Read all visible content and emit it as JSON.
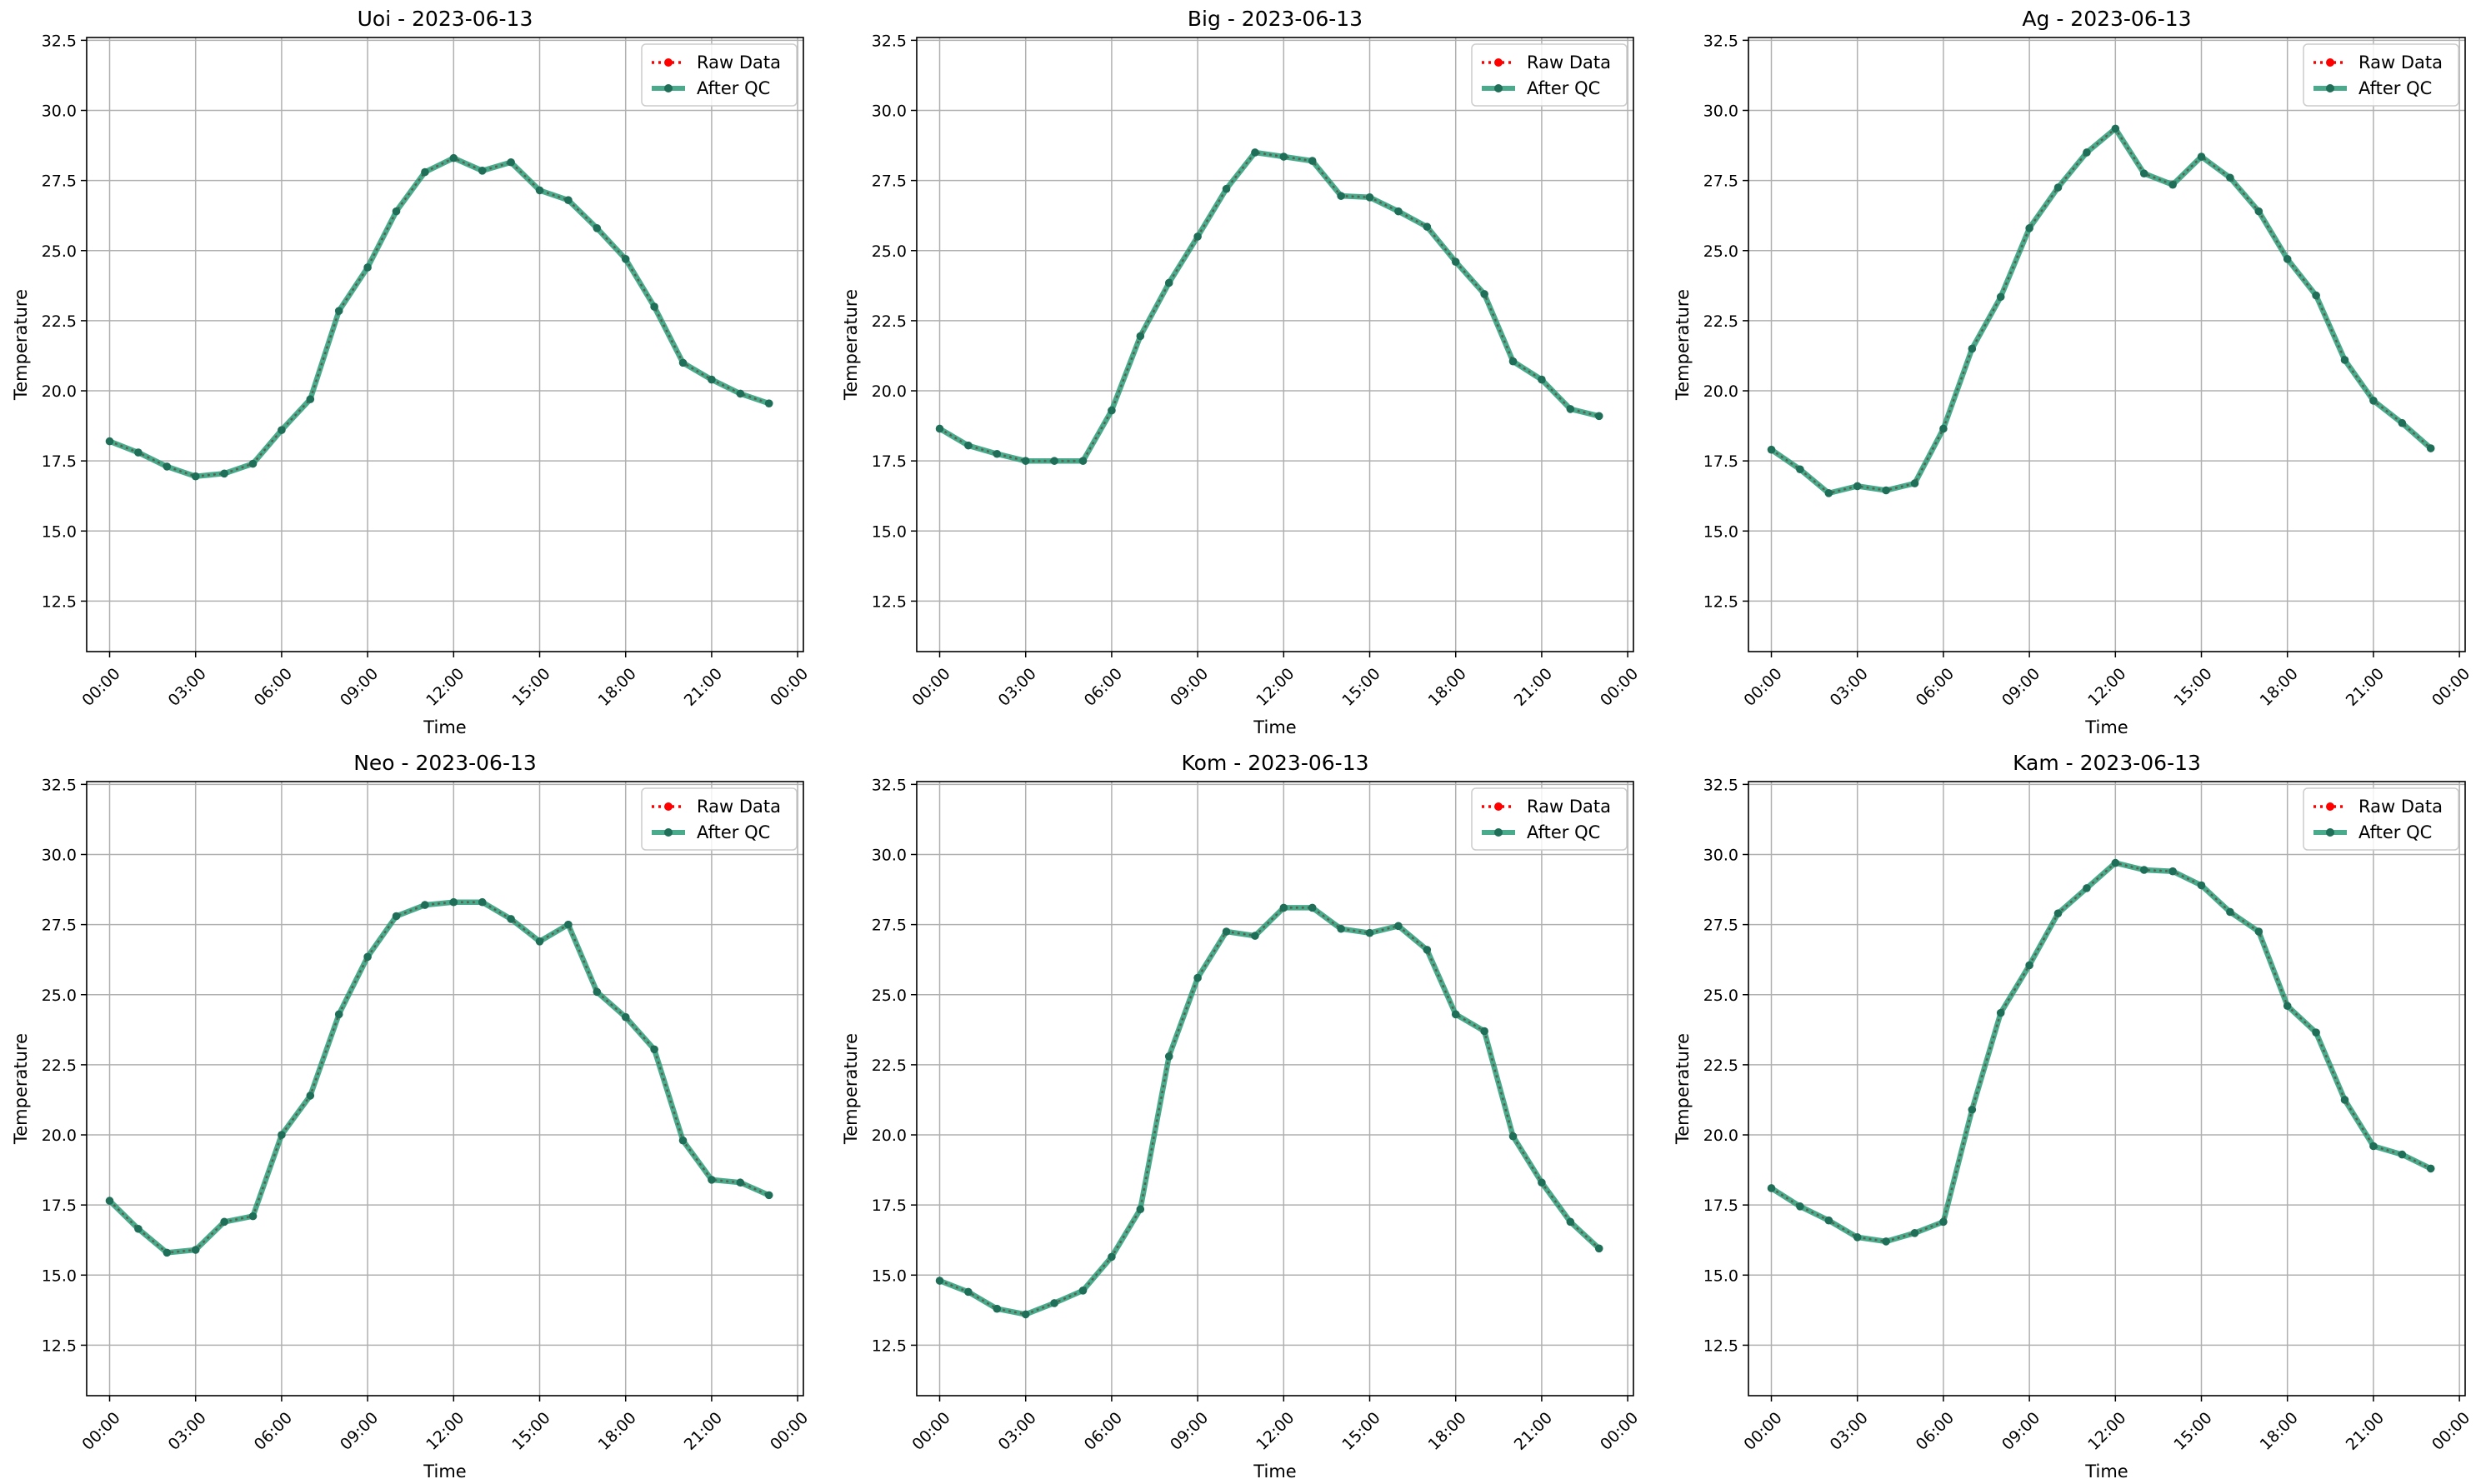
{
  "colors": {
    "raw": "#ff0000",
    "qc": "#2a9c78",
    "grid": "#b0b0b0",
    "axis": "#000000"
  },
  "legend": {
    "raw_label": "Raw Data",
    "qc_label": "After QC"
  },
  "common": {
    "xlabel": "Time",
    "ylabel": "Temperature",
    "ylim": [
      10.7,
      32.6
    ],
    "yticks": [
      12.5,
      15.0,
      17.5,
      20.0,
      22.5,
      25.0,
      27.5,
      30.0,
      32.5
    ],
    "xlim": [
      -0.8,
      24.2
    ],
    "xticks": [
      0,
      3,
      6,
      9,
      12,
      15,
      18,
      21,
      24
    ],
    "xtick_labels": [
      "00:00",
      "03:00",
      "06:00",
      "09:00",
      "12:00",
      "15:00",
      "18:00",
      "21:00",
      "00:00"
    ]
  },
  "chart_data": [
    {
      "type": "line",
      "title": "Uoi - 2023-06-13",
      "x": [
        0,
        1,
        2,
        3,
        4,
        5,
        6,
        7,
        8,
        9,
        10,
        11,
        12,
        13,
        14,
        15,
        16,
        17,
        18,
        19,
        20,
        21,
        22,
        23
      ],
      "series": [
        {
          "name": "Raw Data",
          "values": [
            18.2,
            17.8,
            17.3,
            16.95,
            17.05,
            17.4,
            18.6,
            19.7,
            22.85,
            24.4,
            26.4,
            27.8,
            28.3,
            27.85,
            28.15,
            27.15,
            26.8,
            25.8,
            24.7,
            23.0,
            21.0,
            20.4,
            19.9,
            19.55
          ]
        },
        {
          "name": "After QC",
          "values": [
            18.2,
            17.8,
            17.3,
            16.95,
            17.05,
            17.4,
            18.6,
            19.7,
            22.85,
            24.4,
            26.4,
            27.8,
            28.3,
            27.85,
            28.15,
            27.15,
            26.8,
            25.8,
            24.7,
            23.0,
            21.0,
            20.4,
            19.9,
            19.55
          ]
        }
      ]
    },
    {
      "type": "line",
      "title": "Big - 2023-06-13",
      "x": [
        0,
        1,
        2,
        3,
        4,
        5,
        6,
        7,
        8,
        9,
        10,
        11,
        12,
        13,
        14,
        15,
        16,
        17,
        18,
        19,
        20,
        21,
        22,
        23
      ],
      "series": [
        {
          "name": "Raw Data",
          "values": [
            18.65,
            18.05,
            17.75,
            17.5,
            17.5,
            17.5,
            19.3,
            21.95,
            23.85,
            25.5,
            27.2,
            28.5,
            28.35,
            28.2,
            26.95,
            26.9,
            26.4,
            25.85,
            24.6,
            23.45,
            21.05,
            20.4,
            19.35,
            19.1
          ]
        },
        {
          "name": "After QC",
          "values": [
            18.65,
            18.05,
            17.75,
            17.5,
            17.5,
            17.5,
            19.3,
            21.95,
            23.85,
            25.5,
            27.2,
            28.5,
            28.35,
            28.2,
            26.95,
            26.9,
            26.4,
            25.85,
            24.6,
            23.45,
            21.05,
            20.4,
            19.35,
            19.1
          ]
        }
      ]
    },
    {
      "type": "line",
      "title": "Ag - 2023-06-13",
      "x": [
        0,
        1,
        2,
        3,
        4,
        5,
        6,
        7,
        8,
        9,
        10,
        11,
        12,
        13,
        14,
        15,
        16,
        17,
        18,
        19,
        20,
        21,
        22,
        23
      ],
      "series": [
        {
          "name": "Raw Data",
          "values": [
            17.9,
            17.2,
            16.35,
            16.6,
            16.45,
            16.7,
            18.65,
            21.5,
            23.35,
            25.8,
            27.25,
            28.5,
            29.35,
            27.75,
            27.35,
            28.35,
            27.6,
            26.4,
            24.7,
            23.4,
            21.1,
            19.65,
            18.85,
            17.95
          ]
        },
        {
          "name": "After QC",
          "values": [
            17.9,
            17.2,
            16.35,
            16.6,
            16.45,
            16.7,
            18.65,
            21.5,
            23.35,
            25.8,
            27.25,
            28.5,
            29.35,
            27.75,
            27.35,
            28.35,
            27.6,
            26.4,
            24.7,
            23.4,
            21.1,
            19.65,
            18.85,
            17.95
          ]
        }
      ]
    },
    {
      "type": "line",
      "title": "Neo - 2023-06-13",
      "x": [
        0,
        1,
        2,
        3,
        4,
        5,
        6,
        7,
        8,
        9,
        10,
        11,
        12,
        13,
        14,
        15,
        16,
        17,
        18,
        19,
        20,
        21,
        22,
        23
      ],
      "series": [
        {
          "name": "Raw Data",
          "values": [
            17.65,
            16.65,
            15.8,
            15.9,
            16.9,
            17.1,
            20.0,
            21.4,
            24.3,
            26.35,
            27.8,
            28.2,
            28.3,
            28.3,
            27.7,
            26.9,
            27.5,
            25.1,
            24.2,
            23.05,
            19.8,
            18.4,
            18.3,
            17.85
          ]
        },
        {
          "name": "After QC",
          "values": [
            17.65,
            16.65,
            15.8,
            15.9,
            16.9,
            17.1,
            20.0,
            21.4,
            24.3,
            26.35,
            27.8,
            28.2,
            28.3,
            28.3,
            27.7,
            26.9,
            27.5,
            25.1,
            24.2,
            23.05,
            19.8,
            18.4,
            18.3,
            17.85
          ]
        }
      ]
    },
    {
      "type": "line",
      "title": "Kom - 2023-06-13",
      "x": [
        0,
        1,
        2,
        3,
        4,
        5,
        6,
        7,
        8,
        9,
        10,
        11,
        12,
        13,
        14,
        15,
        16,
        17,
        18,
        19,
        20,
        21,
        22,
        23
      ],
      "series": [
        {
          "name": "Raw Data",
          "values": [
            14.8,
            14.4,
            13.8,
            13.6,
            14.0,
            14.45,
            15.65,
            17.35,
            22.8,
            25.6,
            27.25,
            27.1,
            28.1,
            28.1,
            27.35,
            27.2,
            27.45,
            26.6,
            24.3,
            23.7,
            19.95,
            18.3,
            16.9,
            15.95
          ]
        },
        {
          "name": "After QC",
          "values": [
            14.8,
            14.4,
            13.8,
            13.6,
            14.0,
            14.45,
            15.65,
            17.35,
            22.8,
            25.6,
            27.25,
            27.1,
            28.1,
            28.1,
            27.35,
            27.2,
            27.45,
            26.6,
            24.3,
            23.7,
            19.95,
            18.3,
            16.9,
            15.95
          ]
        }
      ]
    },
    {
      "type": "line",
      "title": "Kam - 2023-06-13",
      "x": [
        0,
        1,
        2,
        3,
        4,
        5,
        6,
        7,
        8,
        9,
        10,
        11,
        12,
        13,
        14,
        15,
        16,
        17,
        18,
        19,
        20,
        21,
        22,
        23
      ],
      "series": [
        {
          "name": "Raw Data",
          "values": [
            18.1,
            17.45,
            16.95,
            16.35,
            16.2,
            16.5,
            16.9,
            20.9,
            24.35,
            26.05,
            27.9,
            28.8,
            29.7,
            29.45,
            29.4,
            28.9,
            27.95,
            27.25,
            24.6,
            23.65,
            21.25,
            19.6,
            19.3,
            18.8
          ]
        },
        {
          "name": "After QC",
          "values": [
            18.1,
            17.45,
            16.95,
            16.35,
            16.2,
            16.5,
            16.9,
            20.9,
            24.35,
            26.05,
            27.9,
            28.8,
            29.7,
            29.45,
            29.4,
            28.9,
            27.95,
            27.25,
            24.6,
            23.65,
            21.25,
            19.6,
            19.3,
            18.8
          ]
        }
      ]
    }
  ]
}
